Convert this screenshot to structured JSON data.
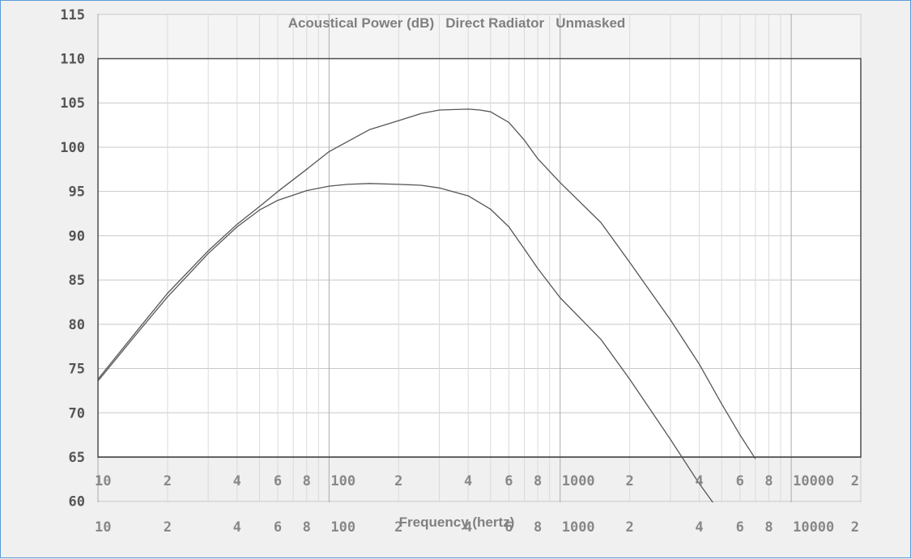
{
  "chart_data": {
    "type": "line",
    "title": "Acoustical Power (dB)   Direct Radiator   Unmasked",
    "xlabel": "Frequency (hertz)",
    "ylabel": "",
    "x_scale": "log",
    "xlim": [
      10,
      20000
    ],
    "ylim": [
      60,
      115
    ],
    "y_ticks": [
      "115",
      "110",
      "105",
      "100",
      "95",
      "90",
      "85",
      "80",
      "75",
      "70",
      "65",
      "60"
    ],
    "x_ticks_upper": [
      "10",
      "2",
      "4",
      "6",
      "8",
      "100",
      "2",
      "4",
      "6",
      "8",
      "1000",
      "2",
      "4",
      "6",
      "8",
      "10000",
      "2"
    ],
    "x_ticks_lower": [
      "10",
      "2",
      "4",
      "6",
      "8",
      "100",
      "2",
      "4",
      "6",
      "8",
      "1000",
      "2",
      "4",
      "6",
      "8",
      "10000",
      "2"
    ],
    "grid": true,
    "series": [
      {
        "x": [
          10,
          15,
          20,
          30,
          40,
          50,
          60,
          80,
          100,
          150,
          200,
          250,
          300,
          400,
          450,
          500,
          600,
          700,
          800,
          1000,
          1500,
          2000,
          3000,
          4000,
          5000,
          6000,
          7000
        ],
        "y": [
          73.8,
          79.5,
          83.5,
          88.3,
          91.3,
          93.3,
          95.0,
          97.5,
          99.5,
          102.0,
          103.0,
          103.8,
          104.2,
          104.3,
          104.2,
          104.0,
          102.8,
          100.8,
          98.7,
          96.0,
          91.5,
          87.0,
          80.5,
          75.5,
          71.0,
          67.5,
          64.8
        ]
      },
      {
        "x": [
          10,
          15,
          20,
          30,
          40,
          50,
          60,
          80,
          100,
          120,
          150,
          200,
          250,
          300,
          400,
          500,
          600,
          700,
          800,
          1000,
          1500,
          2000,
          3000,
          4000,
          5000
        ],
        "y": [
          73.6,
          79.2,
          83.1,
          88.0,
          91.0,
          92.9,
          94.0,
          95.1,
          95.6,
          95.8,
          95.9,
          95.8,
          95.7,
          95.4,
          94.5,
          93.0,
          91.0,
          88.5,
          86.3,
          83.0,
          78.3,
          73.8,
          67.0,
          62.0,
          58.5
        ]
      }
    ]
  }
}
